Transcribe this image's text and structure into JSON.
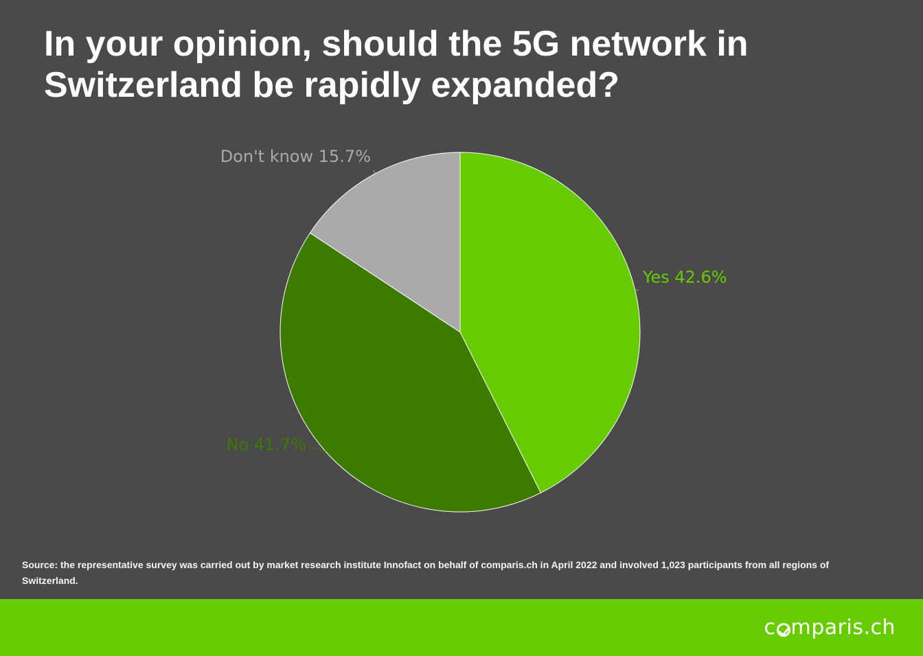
{
  "title": "In your opinion, should the 5G network in Switzerland be rapidly expanded?",
  "chart_data": {
    "type": "pie",
    "slices": [
      {
        "label": "Yes",
        "value": 42.6,
        "display": "Yes 42.6%",
        "color": "#66cc00"
      },
      {
        "label": "No",
        "value": 41.7,
        "display": "No 41.7%",
        "color": "#3d7a00"
      },
      {
        "label": "Don't know",
        "value": 15.7,
        "display": "Don't know 15.7%",
        "color": "#aaaaaa"
      }
    ]
  },
  "source": "Source: the representative survey was carried out by market research institute Innofact on behalf of comparis.ch in April 2022 and involved 1,023 participants from all regions of Switzerland.",
  "footer": {
    "logo_pre": "c",
    "logo_post": "mparis.ch",
    "color": "#66cc00"
  }
}
